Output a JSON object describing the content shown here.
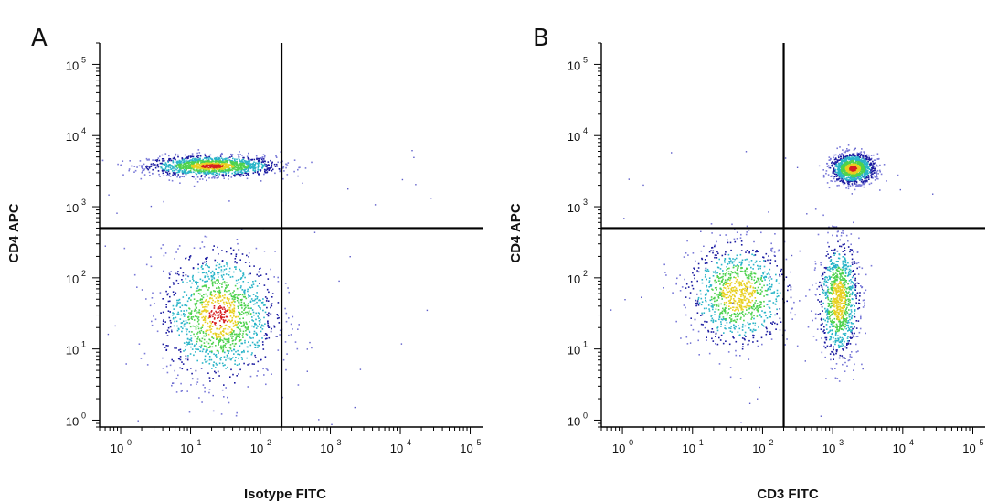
{
  "chart_data": [
    {
      "type": "scatter",
      "panel_label": "A",
      "xlabel": "Isotype FITC",
      "ylabel": "CD4 APC",
      "x_scale": "log",
      "y_scale": "log",
      "xlim": [
        0.5,
        150000
      ],
      "ylim": [
        0.8,
        200000
      ],
      "x_ticks": [
        {
          "base": "10",
          "exp": "0",
          "value": 1
        },
        {
          "base": "10",
          "exp": "1",
          "value": 10
        },
        {
          "base": "10",
          "exp": "2",
          "value": 100
        },
        {
          "base": "10",
          "exp": "3",
          "value": 1000
        },
        {
          "base": "10",
          "exp": "4",
          "value": 10000
        },
        {
          "base": "10",
          "exp": "5",
          "value": 100000
        }
      ],
      "y_ticks": [
        {
          "base": "10",
          "exp": "0",
          "value": 1
        },
        {
          "base": "10",
          "exp": "1",
          "value": 10
        },
        {
          "base": "10",
          "exp": "2",
          "value": 100
        },
        {
          "base": "10",
          "exp": "3",
          "value": 1000
        },
        {
          "base": "10",
          "exp": "4",
          "value": 10000
        },
        {
          "base": "10",
          "exp": "5",
          "value": 100000
        }
      ],
      "quadrant_gate": {
        "x": 200,
        "y": 500
      },
      "populations": [
        {
          "center": [
            20,
            3800
          ],
          "spread": [
            0.45,
            0.07
          ],
          "density": "high"
        },
        {
          "center": [
            25,
            30
          ],
          "spread": [
            0.4,
            0.45
          ],
          "density": "high"
        }
      ],
      "colors": {
        "low": "#1a1aa0",
        "mid": "#2ab5c8",
        "midhigh": "#4ed24e",
        "high": "#e8d020",
        "peak": "#d62020"
      }
    },
    {
      "type": "scatter",
      "panel_label": "B",
      "xlabel": "CD3 FITC",
      "ylabel": "CD4 APC",
      "x_scale": "log",
      "y_scale": "log",
      "xlim": [
        0.5,
        150000
      ],
      "ylim": [
        0.8,
        200000
      ],
      "x_ticks": [
        {
          "base": "10",
          "exp": "0",
          "value": 1
        },
        {
          "base": "10",
          "exp": "1",
          "value": 10
        },
        {
          "base": "10",
          "exp": "2",
          "value": 100
        },
        {
          "base": "10",
          "exp": "3",
          "value": 1000
        },
        {
          "base": "10",
          "exp": "4",
          "value": 10000
        },
        {
          "base": "10",
          "exp": "5",
          "value": 100000
        }
      ],
      "y_ticks": [
        {
          "base": "10",
          "exp": "0",
          "value": 1
        },
        {
          "base": "10",
          "exp": "1",
          "value": 10
        },
        {
          "base": "10",
          "exp": "2",
          "value": 100
        },
        {
          "base": "10",
          "exp": "3",
          "value": 1000
        },
        {
          "base": "10",
          "exp": "4",
          "value": 10000
        },
        {
          "base": "10",
          "exp": "5",
          "value": 100000
        }
      ],
      "quadrant_gate": {
        "x": 200,
        "y": 500
      },
      "populations": [
        {
          "center": [
            1900,
            3500
          ],
          "spread": [
            0.15,
            0.1
          ],
          "density": "high"
        },
        {
          "center": [
            45,
            60
          ],
          "spread": [
            0.35,
            0.35
          ],
          "density": "medium"
        },
        {
          "center": [
            1200,
            50
          ],
          "spread": [
            0.14,
            0.4
          ],
          "density": "medium"
        }
      ],
      "colors": {
        "low": "#1a1aa0",
        "mid": "#2ab5c8",
        "midhigh": "#4ed24e",
        "high": "#e8d020",
        "peak": "#d62020"
      }
    }
  ]
}
